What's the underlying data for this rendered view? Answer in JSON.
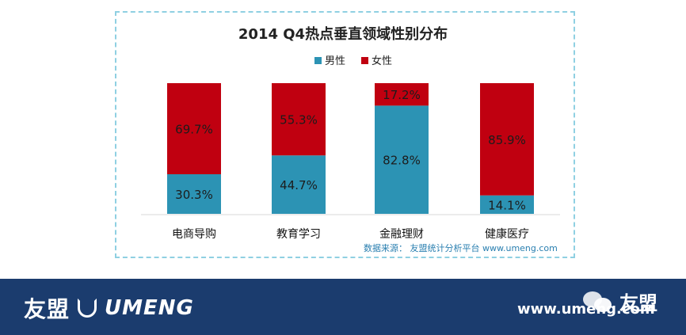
{
  "chart_data": {
    "type": "bar",
    "stacked": true,
    "title": "2014 Q4热点垂直领域性别分布",
    "categories": [
      "电商导购",
      "教育学习",
      "金融理财",
      "健康医疗"
    ],
    "series": [
      {
        "name": "男性",
        "color": "#2c93b4",
        "values": [
          30.3,
          44.7,
          82.8,
          14.1
        ],
        "labels": [
          "30.3%",
          "44.7%",
          "82.8%",
          "14.1%"
        ]
      },
      {
        "name": "女性",
        "color": "#c00010",
        "values": [
          69.7,
          55.3,
          17.2,
          85.9
        ],
        "labels": [
          "69.7%",
          "55.3%",
          "17.2%",
          "85.9%"
        ]
      }
    ],
    "ylim": [
      0,
      100
    ],
    "legend_position": "top-center",
    "grid": false
  },
  "source_note": "数据来源： 友盟统计分析平台 www.umeng.com",
  "footer": {
    "brand_cn": "友盟",
    "brand_en": "UMENG",
    "url": "www.umeng.com",
    "wechat_name": "友盟"
  },
  "icons": {
    "logo": "umeng-logo-icon",
    "wechat": "wechat-icon"
  },
  "colors": {
    "frame": "#8fd0e2",
    "footer_bg": "#1b3c6e"
  }
}
